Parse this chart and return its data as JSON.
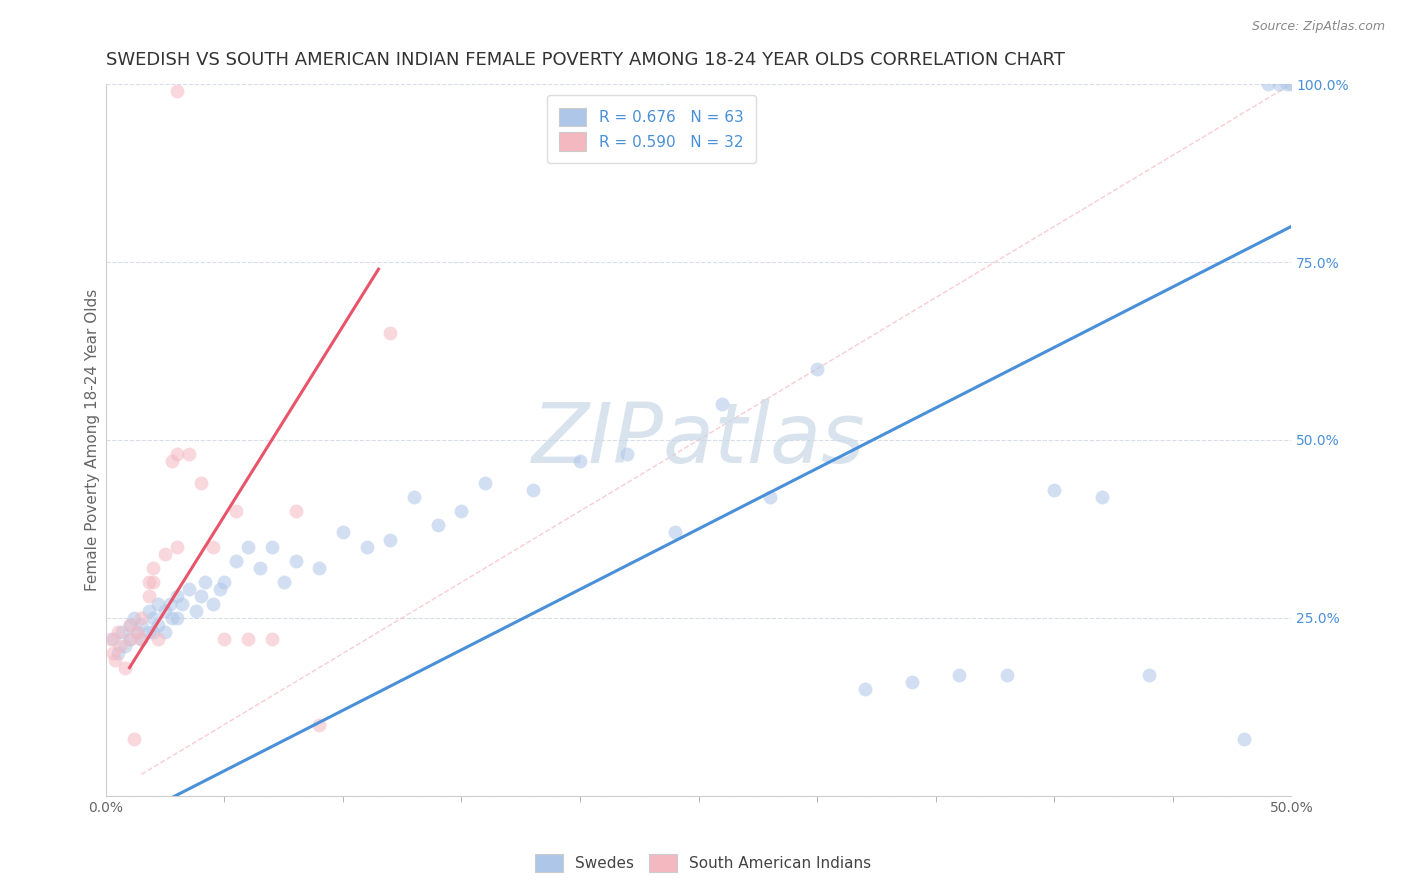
{
  "title": "SWEDISH VS SOUTH AMERICAN INDIAN FEMALE POVERTY AMONG 18-24 YEAR OLDS CORRELATION CHART",
  "source": "Source: ZipAtlas.com",
  "ylabel": "Female Poverty Among 18-24 Year Olds",
  "xlim": [
    0.0,
    0.5
  ],
  "ylim": [
    0.0,
    1.0
  ],
  "xticks_major": [
    0.0,
    0.5
  ],
  "xticks_minor": [
    0.05,
    0.1,
    0.15,
    0.2,
    0.25,
    0.3,
    0.35,
    0.4,
    0.45
  ],
  "xtick_major_labels": [
    "0.0%",
    "50.0%"
  ],
  "yticks_right": [
    0.25,
    0.5,
    0.75,
    1.0
  ],
  "ytick_labels_right": [
    "25.0%",
    "50.0%",
    "75.0%",
    "100.0%"
  ],
  "legend_r1": "R = 0.676   N = 63",
  "legend_r2": "R = 0.590   N = 32",
  "blue_color": "#aec6e8",
  "pink_color": "#f4b8c1",
  "blue_line_color": "#4a90d9",
  "pink_line_color": "#e8546a",
  "diag_line_color": "#f4b8c1",
  "watermark_color": "#c8d8e8",
  "bg_color": "#ffffff",
  "grid_color": "#d8dde8",
  "title_fontsize": 13,
  "axis_fontsize": 11,
  "tick_fontsize": 10,
  "scatter_size": 100,
  "scatter_alpha": 0.55,
  "blue_line_x": [
    0.0,
    0.5
  ],
  "blue_line_y": [
    -0.05,
    0.8
  ],
  "pink_line_x": [
    0.01,
    0.115
  ],
  "pink_line_y": [
    0.18,
    0.74
  ],
  "diag_line_x": [
    0.015,
    0.5
  ],
  "diag_line_y": [
    0.03,
    1.0
  ],
  "blue_scatter_x": [
    0.003,
    0.005,
    0.007,
    0.008,
    0.01,
    0.01,
    0.012,
    0.013,
    0.015,
    0.015,
    0.018,
    0.018,
    0.02,
    0.02,
    0.022,
    0.022,
    0.025,
    0.025,
    0.027,
    0.028,
    0.03,
    0.03,
    0.032,
    0.035,
    0.038,
    0.04,
    0.042,
    0.045,
    0.048,
    0.05,
    0.055,
    0.06,
    0.065,
    0.07,
    0.075,
    0.08,
    0.09,
    0.1,
    0.11,
    0.12,
    0.13,
    0.14,
    0.15,
    0.16,
    0.18,
    0.2,
    0.22,
    0.24,
    0.26,
    0.28,
    0.3,
    0.32,
    0.34,
    0.36,
    0.38,
    0.4,
    0.42,
    0.44,
    0.48,
    0.49,
    0.495,
    0.498,
    0.5
  ],
  "blue_scatter_y": [
    0.22,
    0.2,
    0.23,
    0.21,
    0.24,
    0.22,
    0.25,
    0.23,
    0.24,
    0.22,
    0.26,
    0.23,
    0.25,
    0.23,
    0.27,
    0.24,
    0.26,
    0.23,
    0.27,
    0.25,
    0.28,
    0.25,
    0.27,
    0.29,
    0.26,
    0.28,
    0.3,
    0.27,
    0.29,
    0.3,
    0.33,
    0.35,
    0.32,
    0.35,
    0.3,
    0.33,
    0.32,
    0.37,
    0.35,
    0.36,
    0.42,
    0.38,
    0.4,
    0.44,
    0.43,
    0.47,
    0.48,
    0.37,
    0.55,
    0.42,
    0.6,
    0.15,
    0.16,
    0.17,
    0.17,
    0.43,
    0.42,
    0.17,
    0.08,
    1.0,
    1.0,
    1.0,
    1.0
  ],
  "pink_scatter_x": [
    0.002,
    0.003,
    0.004,
    0.005,
    0.006,
    0.008,
    0.01,
    0.01,
    0.012,
    0.013,
    0.015,
    0.015,
    0.018,
    0.018,
    0.02,
    0.02,
    0.022,
    0.025,
    0.028,
    0.03,
    0.03,
    0.035,
    0.04,
    0.045,
    0.05,
    0.055,
    0.06,
    0.07,
    0.08,
    0.09,
    0.12,
    0.03
  ],
  "pink_scatter_y": [
    0.22,
    0.2,
    0.19,
    0.23,
    0.21,
    0.18,
    0.22,
    0.24,
    0.08,
    0.23,
    0.25,
    0.22,
    0.28,
    0.3,
    0.3,
    0.32,
    0.22,
    0.34,
    0.47,
    0.48,
    0.35,
    0.48,
    0.44,
    0.35,
    0.22,
    0.4,
    0.22,
    0.22,
    0.4,
    0.1,
    0.65,
    0.99
  ]
}
